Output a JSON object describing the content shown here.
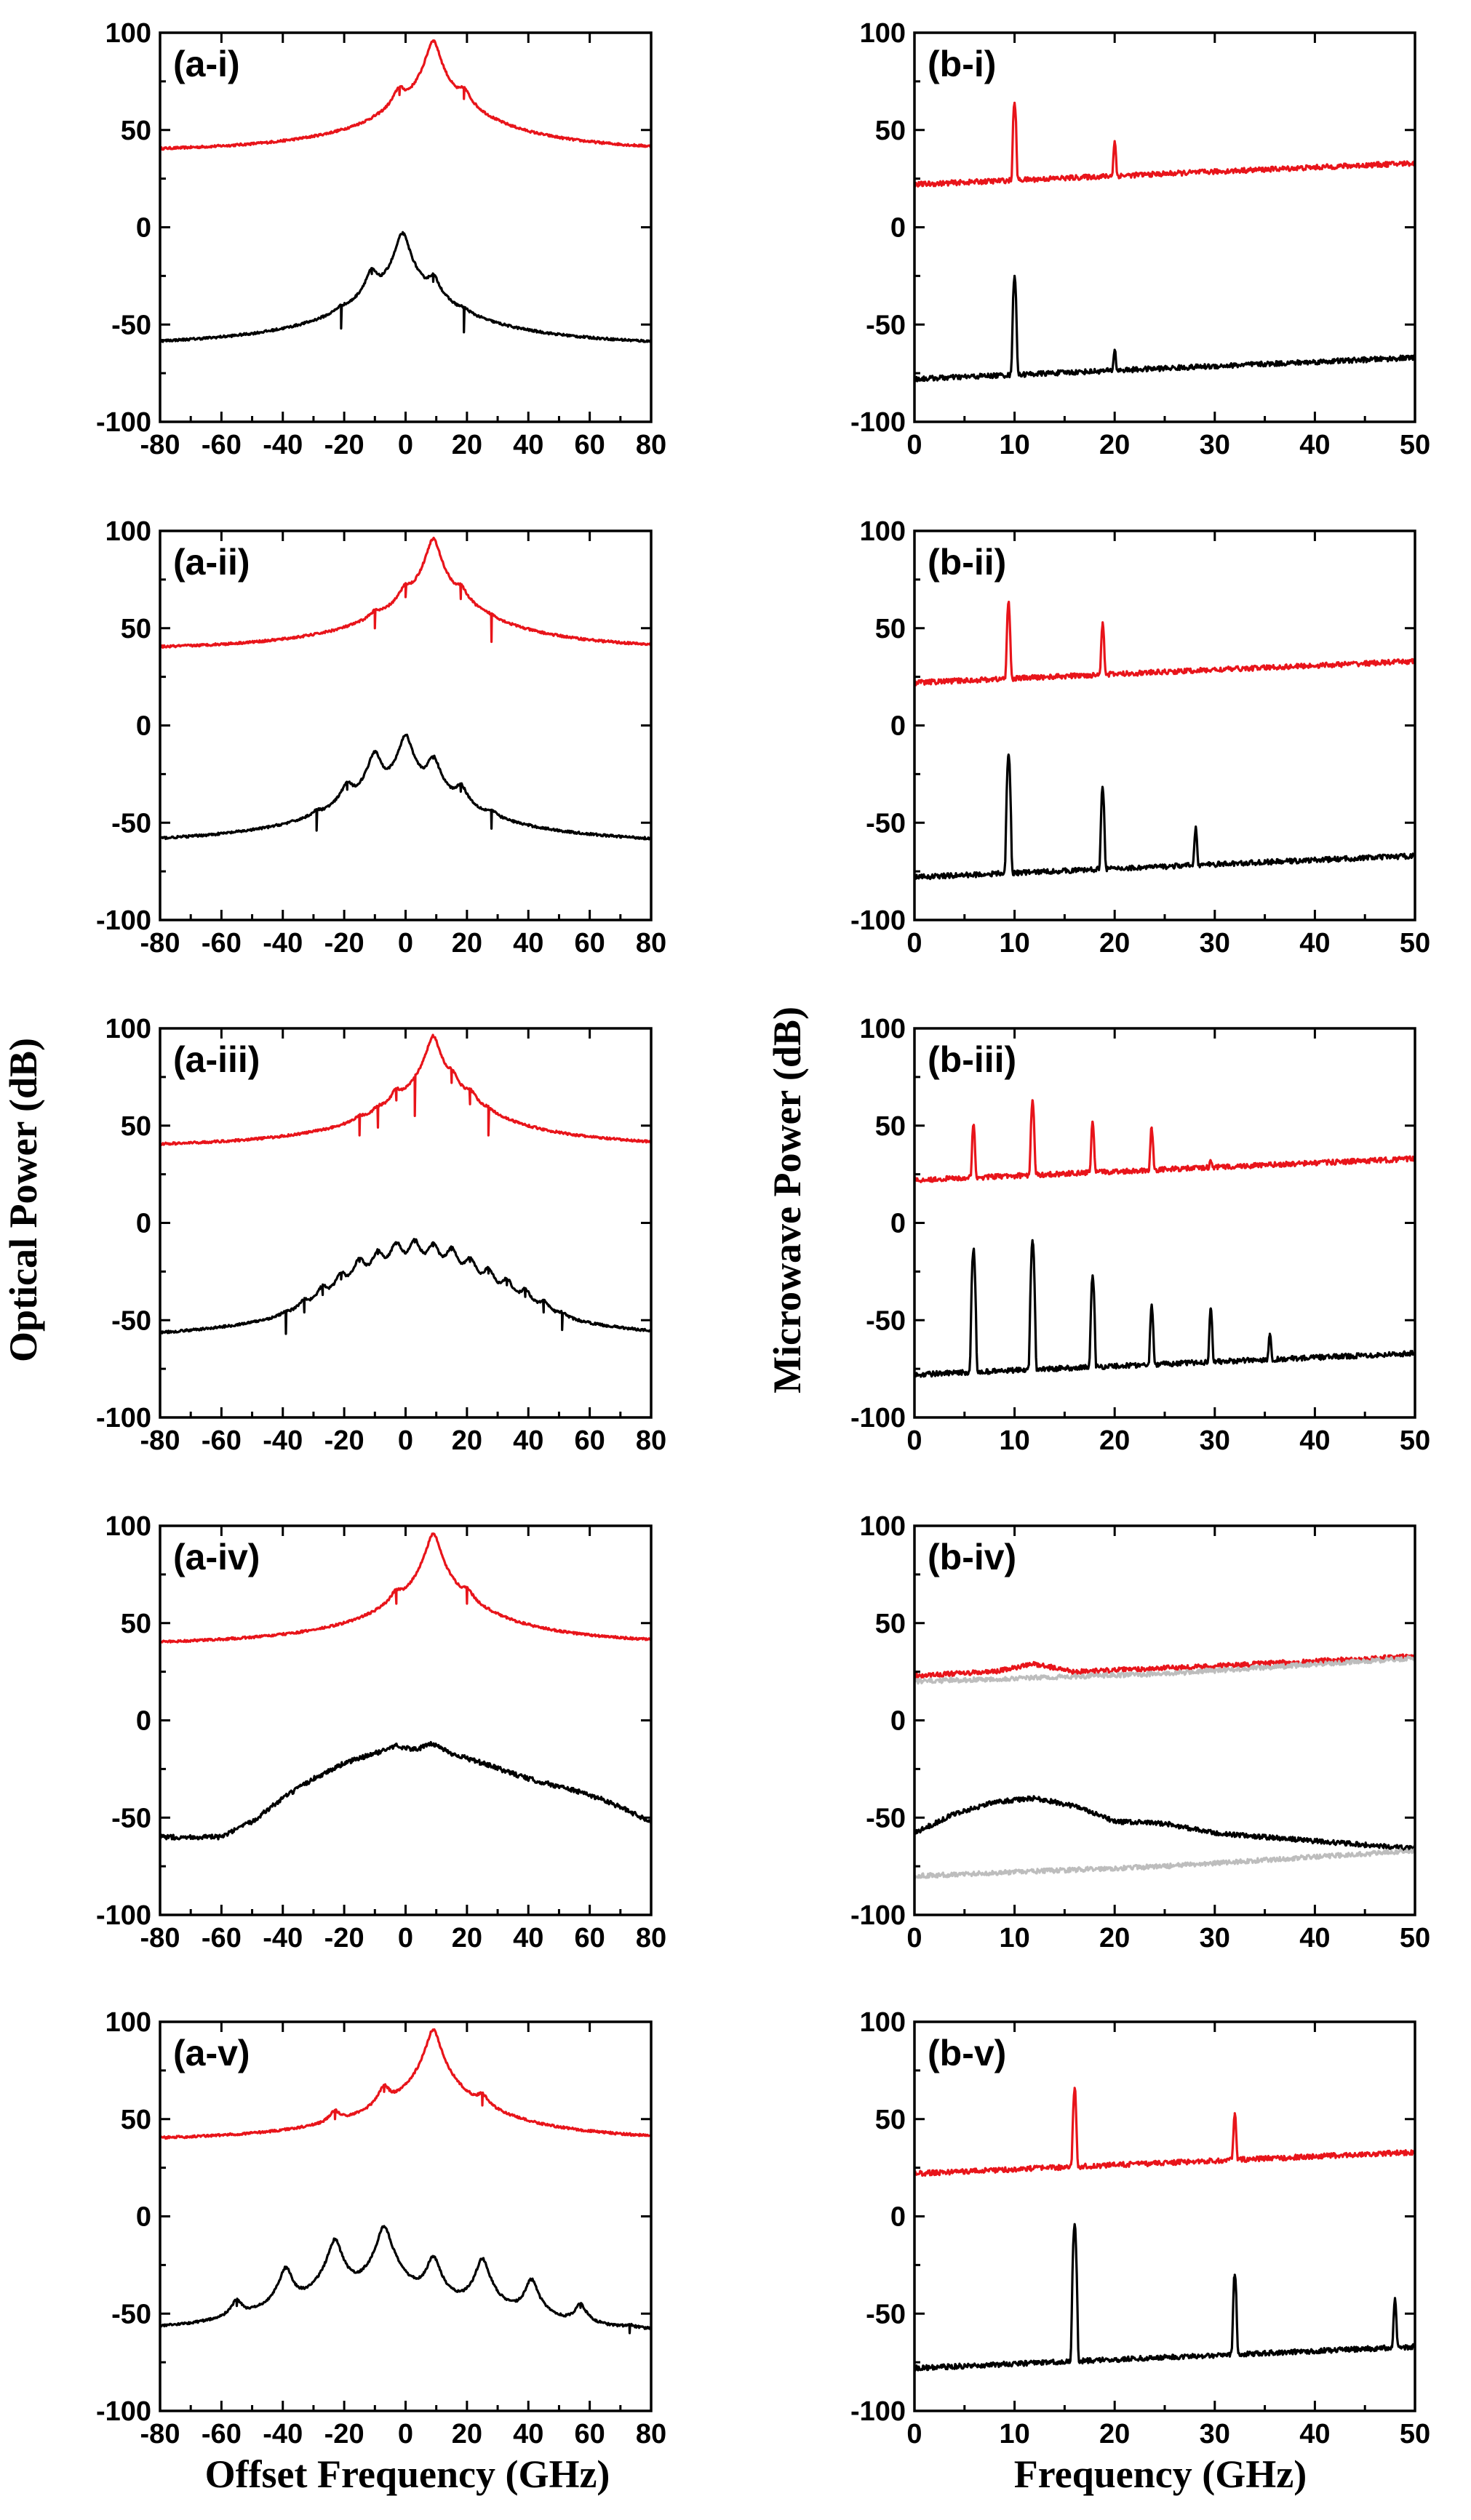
{
  "colors": {
    "red": "#e8141a",
    "black": "#000000",
    "gray": "#bdbdbd"
  },
  "axis_titles": {
    "left_y": "Optical Power (dB)",
    "right_y": "Microwave Power (dB)",
    "left_x": "Offset Frequency (GHz)",
    "right_x": "Frequency (GHz)"
  },
  "chart_data": [
    {
      "id": "a-i",
      "label": "(a-i)",
      "type": "line",
      "column": "left",
      "row": 0,
      "xlim": [
        -80,
        80
      ],
      "ylim": [
        -100,
        100
      ],
      "xticks": [
        -80,
        -60,
        -40,
        -20,
        0,
        20,
        40,
        60,
        80
      ],
      "xticklabels": [
        "-80",
        "-60",
        "-40",
        "-20",
        "0",
        "20",
        "40",
        "60",
        "80"
      ],
      "yticks": [
        -100,
        -50,
        0,
        50,
        100
      ],
      "yticklabels": [
        "-100",
        "-50",
        "0",
        "50",
        "100"
      ],
      "series": [
        {
          "name": "upper",
          "color": "#e8141a",
          "baseline": 38,
          "peaks": [
            [
              -2,
              68
            ],
            [
              9,
              96
            ],
            [
              19,
              66
            ]
          ]
        },
        {
          "name": "lower",
          "color": "#000000",
          "baseline": -62,
          "peaks": [
            [
              -21,
              -52
            ],
            [
              -11,
              -24
            ],
            [
              -1,
              -3
            ],
            [
              9,
              -28
            ],
            [
              19,
              -54
            ]
          ]
        }
      ]
    },
    {
      "id": "b-i",
      "label": "(b-i)",
      "type": "line",
      "column": "right",
      "row": 0,
      "xlim": [
        0,
        50
      ],
      "ylim": [
        -100,
        100
      ],
      "xticks": [
        0,
        10,
        20,
        30,
        40,
        50
      ],
      "xticklabels": [
        "0",
        "10",
        "20",
        "30",
        "40",
        "50"
      ],
      "yticks": [
        -100,
        -50,
        0,
        50,
        100
      ],
      "yticklabels": [
        "-100",
        "-50",
        "0",
        "50",
        "100"
      ],
      "series": [
        {
          "name": "upper",
          "color": "#e8141a",
          "baseline_start": 22,
          "baseline_end": 33,
          "peaks": [
            [
              10,
              64
            ],
            [
              20,
              44
            ]
          ]
        },
        {
          "name": "lower",
          "color": "#000000",
          "baseline_start": -78,
          "baseline_end": -67,
          "peaks": [
            [
              10,
              -25
            ],
            [
              20,
              -63
            ]
          ]
        }
      ]
    },
    {
      "id": "a-ii",
      "label": "(a-ii)",
      "type": "line",
      "column": "left",
      "row": 1,
      "xlim": [
        -80,
        80
      ],
      "ylim": [
        -100,
        100
      ],
      "xticks": [
        -80,
        -60,
        -40,
        -20,
        0,
        20,
        40,
        60,
        80
      ],
      "xticklabels": [
        "-80",
        "-60",
        "-40",
        "-20",
        "0",
        "20",
        "40",
        "60",
        "80"
      ],
      "yticks": [
        -100,
        -50,
        0,
        50,
        100
      ],
      "yticklabels": [
        "-100",
        "-50",
        "0",
        "50",
        "100"
      ],
      "series": [
        {
          "name": "upper",
          "color": "#e8141a",
          "baseline": 38,
          "peaks": [
            [
              -10,
              50
            ],
            [
              0,
              66
            ],
            [
              9,
              96
            ],
            [
              18,
              65
            ],
            [
              28,
              43
            ]
          ]
        },
        {
          "name": "lower",
          "color": "#000000",
          "baseline": -62,
          "peaks": [
            [
              -29,
              -54
            ],
            [
              -19,
              -33
            ],
            [
              -10,
              -14
            ],
            [
              0,
              -5
            ],
            [
              9,
              -17
            ],
            [
              18,
              -34
            ],
            [
              28,
              -53
            ]
          ]
        }
      ]
    },
    {
      "id": "b-ii",
      "label": "(b-ii)",
      "type": "line",
      "column": "right",
      "row": 1,
      "xlim": [
        0,
        50
      ],
      "ylim": [
        -100,
        100
      ],
      "xticks": [
        0,
        10,
        20,
        30,
        40,
        50
      ],
      "xticklabels": [
        "0",
        "10",
        "20",
        "30",
        "40",
        "50"
      ],
      "yticks": [
        -100,
        -50,
        0,
        50,
        100
      ],
      "yticklabels": [
        "-100",
        "-50",
        "0",
        "50",
        "100"
      ],
      "series": [
        {
          "name": "upper",
          "color": "#e8141a",
          "baseline_start": 22,
          "baseline_end": 33,
          "peaks": [
            [
              9.4,
              63
            ],
            [
              18.8,
              53
            ]
          ]
        },
        {
          "name": "lower",
          "color": "#000000",
          "baseline_start": -78,
          "baseline_end": -67,
          "peaks": [
            [
              9.4,
              -15
            ],
            [
              18.8,
              -32
            ],
            [
              28.1,
              -52
            ]
          ]
        }
      ]
    },
    {
      "id": "a-iii",
      "label": "(a-iii)",
      "type": "line",
      "column": "left",
      "row": 2,
      "xlim": [
        -80,
        80
      ],
      "ylim": [
        -100,
        100
      ],
      "xticks": [
        -80,
        -60,
        -40,
        -20,
        0,
        20,
        40,
        60,
        80
      ],
      "xticklabels": [
        "-80",
        "-60",
        "-40",
        "-20",
        "0",
        "20",
        "40",
        "60",
        "80"
      ],
      "yticks": [
        -100,
        -50,
        0,
        50,
        100
      ],
      "yticklabels": [
        "-100",
        "-50",
        "0",
        "50",
        "100"
      ],
      "series": [
        {
          "name": "upper",
          "color": "#e8141a",
          "baseline": 38,
          "peaks": [
            [
              -15,
              45
            ],
            [
              -9,
              49
            ],
            [
              -3,
              63
            ],
            [
              3,
              55
            ],
            [
              9,
              96
            ],
            [
              15,
              72
            ],
            [
              21,
              61
            ],
            [
              27,
              45
            ]
          ]
        },
        {
          "name": "lower",
          "color": "#000000",
          "baseline": -62,
          "peaks": [
            [
              -39,
              -57
            ],
            [
              -33,
              -46
            ],
            [
              -27,
              -37
            ],
            [
              -21,
              -29
            ],
            [
              -15,
              -20
            ],
            [
              -9,
              -16
            ],
            [
              -3,
              -11
            ],
            [
              3,
              -10
            ],
            [
              9,
              -12
            ],
            [
              15,
              -14
            ],
            [
              21,
              -20
            ],
            [
              27,
              -26
            ],
            [
              33,
              -32
            ],
            [
              39,
              -38
            ],
            [
              45,
              -46
            ],
            [
              51,
              -55
            ]
          ]
        }
      ]
    },
    {
      "id": "b-iii",
      "label": "(b-iii)",
      "type": "line",
      "column": "right",
      "row": 2,
      "xlim": [
        0,
        50
      ],
      "ylim": [
        -100,
        100
      ],
      "xticks": [
        0,
        10,
        20,
        30,
        40,
        50
      ],
      "xticklabels": [
        "0",
        "10",
        "20",
        "30",
        "40",
        "50"
      ],
      "yticks": [
        -100,
        -50,
        0,
        50,
        100
      ],
      "yticklabels": [
        "-100",
        "-50",
        "0",
        "50",
        "100"
      ],
      "series": [
        {
          "name": "upper",
          "color": "#e8141a",
          "baseline_start": 22,
          "baseline_end": 33,
          "peaks": [
            [
              5.9,
              50
            ],
            [
              11.8,
              63
            ],
            [
              17.8,
              52
            ],
            [
              23.7,
              49
            ],
            [
              29.6,
              32
            ]
          ]
        },
        {
          "name": "lower",
          "color": "#000000",
          "baseline_start": -78,
          "baseline_end": -67,
          "peaks": [
            [
              5.9,
              -14
            ],
            [
              11.8,
              -10
            ],
            [
              17.8,
              -27
            ],
            [
              23.7,
              -42
            ],
            [
              29.6,
              -44
            ],
            [
              35.5,
              -57
            ]
          ]
        }
      ]
    },
    {
      "id": "a-iv",
      "label": "(a-iv)",
      "type": "line",
      "column": "left",
      "row": 3,
      "xlim": [
        -80,
        80
      ],
      "ylim": [
        -100,
        100
      ],
      "xticks": [
        -80,
        -60,
        -40,
        -20,
        0,
        20,
        40,
        60,
        80
      ],
      "xticklabels": [
        "-80",
        "-60",
        "-40",
        "-20",
        "0",
        "20",
        "40",
        "60",
        "80"
      ],
      "yticks": [
        -100,
        -50,
        0,
        50,
        100
      ],
      "yticklabels": [
        "-100",
        "-50",
        "0",
        "50",
        "100"
      ],
      "series": [
        {
          "name": "upper",
          "color": "#e8141a",
          "baseline": 38,
          "peaks": [
            [
              -3,
              60
            ],
            [
              9,
              96
            ],
            [
              20,
              60
            ]
          ]
        },
        {
          "name": "lower",
          "color": "#000000",
          "shape": "broad",
          "points": [
            [
              -80,
              -60
            ],
            [
              -60,
              -60
            ],
            [
              -50,
              -52
            ],
            [
              -40,
              -40
            ],
            [
              -30,
              -30
            ],
            [
              -20,
              -22
            ],
            [
              -10,
              -17
            ],
            [
              -3,
              -13
            ],
            [
              3,
              -15
            ],
            [
              9,
              -12
            ],
            [
              15,
              -17
            ],
            [
              25,
              -22
            ],
            [
              40,
              -30
            ],
            [
              55,
              -36
            ],
            [
              65,
              -41
            ],
            [
              80,
              -52
            ]
          ]
        }
      ]
    },
    {
      "id": "b-iv",
      "label": "(b-iv)",
      "type": "line",
      "column": "right",
      "row": 3,
      "xlim": [
        0,
        50
      ],
      "ylim": [
        -100,
        100
      ],
      "xticks": [
        0,
        10,
        20,
        30,
        40,
        50
      ],
      "xticklabels": [
        "0",
        "10",
        "20",
        "30",
        "40",
        "50"
      ],
      "yticks": [
        -100,
        -50,
        0,
        50,
        100
      ],
      "yticklabels": [
        "-100",
        "-50",
        "0",
        "50",
        "100"
      ],
      "series": [
        {
          "name": "upper",
          "color": "#e8141a",
          "points": [
            [
              0,
              23
            ],
            [
              8,
              25
            ],
            [
              12,
              29
            ],
            [
              16,
              25
            ],
            [
              30,
              28
            ],
            [
              50,
              33
            ]
          ]
        },
        {
          "name": "upper-reference",
          "color": "#bdbdbd",
          "points": [
            [
              0,
              20
            ],
            [
              25,
              24
            ],
            [
              50,
              32
            ]
          ]
        },
        {
          "name": "lower",
          "color": "#000000",
          "points": [
            [
              0,
              -58
            ],
            [
              4,
              -48
            ],
            [
              8,
              -42
            ],
            [
              12,
              -40
            ],
            [
              16,
              -44
            ],
            [
              20,
              -52
            ],
            [
              25,
              -53
            ],
            [
              30,
              -58
            ],
            [
              40,
              -62
            ],
            [
              50,
              -66
            ]
          ]
        },
        {
          "name": "lower-reference",
          "color": "#bdbdbd",
          "points": [
            [
              0,
              -80
            ],
            [
              25,
              -75
            ],
            [
              50,
              -67
            ]
          ]
        }
      ]
    },
    {
      "id": "a-v",
      "label": "(a-v)",
      "type": "line",
      "column": "left",
      "row": 4,
      "xlim": [
        -80,
        80
      ],
      "ylim": [
        -100,
        100
      ],
      "xticks": [
        -80,
        -60,
        -40,
        -20,
        0,
        20,
        40,
        60,
        80
      ],
      "xticklabels": [
        "-80",
        "-60",
        "-40",
        "-20",
        "0",
        "20",
        "40",
        "60",
        "80"
      ],
      "yticks": [
        -100,
        -50,
        0,
        50,
        100
      ],
      "yticklabels": [
        "-100",
        "-50",
        "0",
        "50",
        "100"
      ],
      "series": [
        {
          "name": "upper",
          "color": "#e8141a",
          "baseline": 38,
          "peaks": [
            [
              -23,
              50
            ],
            [
              -7,
              64
            ],
            [
              9,
              96
            ],
            [
              25,
              57
            ]
          ]
        },
        {
          "name": "lower",
          "color": "#000000",
          "baseline": -62,
          "peaks": [
            [
              -55,
              -46
            ],
            [
              -39,
              -27
            ],
            [
              -23,
              -12
            ],
            [
              -7,
              -5
            ],
            [
              9,
              -21
            ],
            [
              25,
              -22
            ],
            [
              41,
              -33
            ],
            [
              57,
              -47
            ],
            [
              73,
              -60
            ]
          ]
        }
      ]
    },
    {
      "id": "b-v",
      "label": "(b-v)",
      "type": "line",
      "column": "right",
      "row": 4,
      "xlim": [
        0,
        50
      ],
      "ylim": [
        -100,
        100
      ],
      "xticks": [
        0,
        10,
        20,
        30,
        40,
        50
      ],
      "xticklabels": [
        "0",
        "10",
        "20",
        "30",
        "40",
        "50"
      ],
      "yticks": [
        -100,
        -50,
        0,
        50,
        100
      ],
      "yticklabels": [
        "-100",
        "-50",
        "0",
        "50",
        "100"
      ],
      "series": [
        {
          "name": "upper",
          "color": "#e8141a",
          "baseline_start": 22,
          "baseline_end": 33,
          "peaks": [
            [
              16,
              66
            ],
            [
              32,
              53
            ]
          ]
        },
        {
          "name": "lower",
          "color": "#000000",
          "baseline_start": -78,
          "baseline_end": -67,
          "peaks": [
            [
              16,
              -4
            ],
            [
              32,
              -30
            ],
            [
              48,
              -42
            ]
          ]
        }
      ]
    }
  ]
}
